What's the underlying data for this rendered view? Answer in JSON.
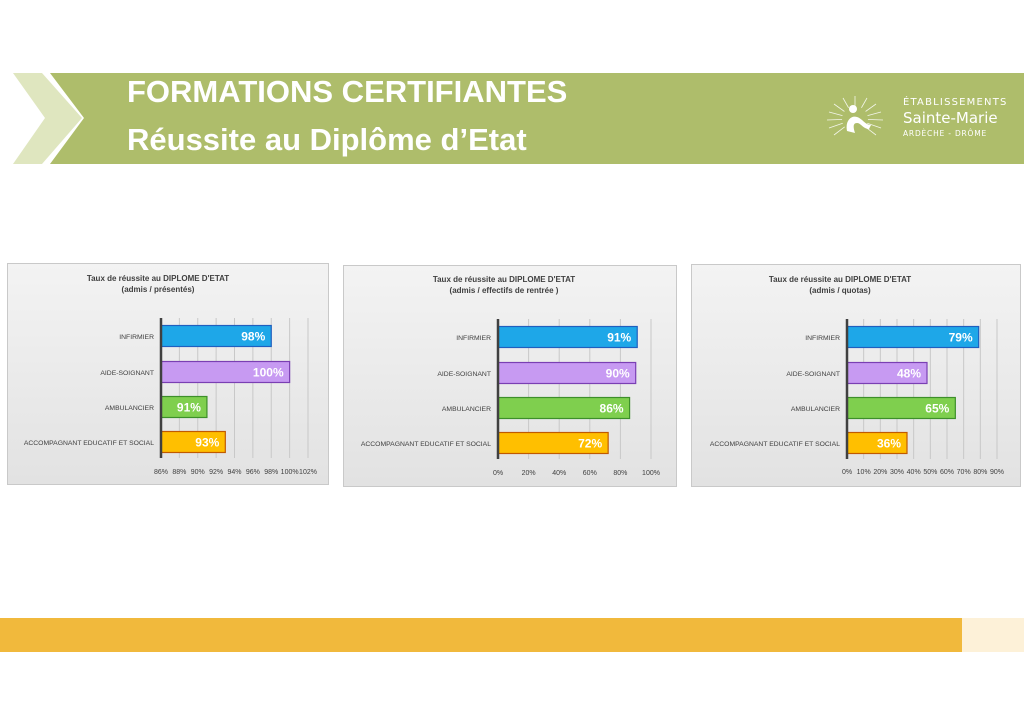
{
  "header": {
    "title_line1": "FORMATIONS CERTIFIANTES",
    "title_line2": "Réussite au Diplôme d’Etat",
    "band_color": "#aebd6b",
    "chevron_color": "#dfe6bf"
  },
  "logo": {
    "line1": "ÉTABLISSEMENTS",
    "line2": "Sainte-Marie",
    "line3": "ARDÈCHE - DRÔME",
    "icon": "sun-figure-logo-icon"
  },
  "footer": {
    "bar_color": "#f1b93c",
    "end_color": "#fdf1d8"
  },
  "chart_data": [
    {
      "type": "bar",
      "orientation": "horizontal",
      "title": "Taux de réussite au DIPLOME D'ETAT",
      "subtitle": "(admis / présentés)",
      "categories": [
        "INFIRMIER",
        "AIDE-SOIGNANT",
        "AMBULANCIER",
        "ACCOMPAGNANT EDUCATIF ET SOCIAL"
      ],
      "values": [
        98,
        100,
        91,
        93
      ],
      "data_labels": [
        "98%",
        "100%",
        "91%",
        "93%"
      ],
      "colors": [
        "#1ea7e8",
        "#c79af2",
        "#7fcf4e",
        "#ffbf00"
      ],
      "border_colors": [
        "#1f5fbf",
        "#7a3fb3",
        "#3d8f2a",
        "#c05a00"
      ],
      "xlim": [
        86,
        102
      ],
      "ticks": [
        86,
        88,
        90,
        92,
        94,
        96,
        98,
        100,
        102
      ],
      "tick_labels": [
        "86%",
        "88%",
        "90%",
        "92%",
        "94%",
        "96%",
        "98%",
        "100%",
        "102%"
      ],
      "grid": true
    },
    {
      "type": "bar",
      "orientation": "horizontal",
      "title": "Taux de réussite au DIPLOME D'ETAT",
      "subtitle": "(admis / effectifs de rentrée )",
      "categories": [
        "INFIRMIER",
        "AIDE-SOIGNANT",
        "AMBULANCIER",
        "ACCOMPAGNANT EDUCATIF ET SOCIAL"
      ],
      "values": [
        91,
        90,
        86,
        72
      ],
      "data_labels": [
        "91%",
        "90%",
        "86%",
        "72%"
      ],
      "colors": [
        "#1ea7e8",
        "#c79af2",
        "#7fcf4e",
        "#ffbf00"
      ],
      "border_colors": [
        "#1f5fbf",
        "#7a3fb3",
        "#3d8f2a",
        "#c05a00"
      ],
      "xlim": [
        0,
        100
      ],
      "ticks": [
        0,
        20,
        40,
        60,
        80,
        100
      ],
      "tick_labels": [
        "0%",
        "20%",
        "40%",
        "60%",
        "80%",
        "100%"
      ],
      "grid": true
    },
    {
      "type": "bar",
      "orientation": "horizontal",
      "title": "Taux de réussite au DIPLOME D'ETAT",
      "subtitle": "(admis / quotas)",
      "categories": [
        "INFIRMIER",
        "AIDE-SOIGNANT",
        "AMBULANCIER",
        "ACCOMPAGNANT EDUCATIF ET SOCIAL"
      ],
      "values": [
        79,
        48,
        65,
        36
      ],
      "data_labels": [
        "79%",
        "48%",
        "65%",
        "36%"
      ],
      "colors": [
        "#1ea7e8",
        "#c79af2",
        "#7fcf4e",
        "#ffbf00"
      ],
      "border_colors": [
        "#1f5fbf",
        "#7a3fb3",
        "#3d8f2a",
        "#c05a00"
      ],
      "xlim": [
        0,
        90
      ],
      "ticks": [
        0,
        10,
        20,
        30,
        40,
        50,
        60,
        70,
        80,
        90
      ],
      "tick_labels": [
        "0%",
        "10%",
        "20%",
        "30%",
        "40%",
        "50%",
        "60%",
        "70%",
        "80%",
        "90%"
      ],
      "grid": true
    }
  ]
}
